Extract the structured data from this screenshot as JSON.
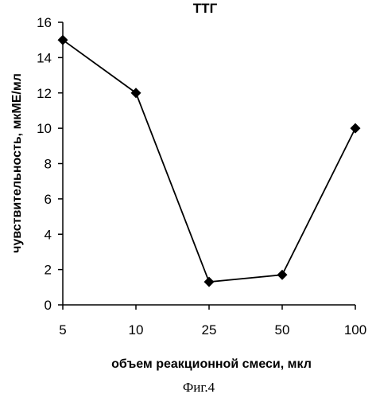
{
  "chart_data": {
    "type": "line",
    "title": "ТТГ",
    "xlabel": "объем реакционной смеси, мкл",
    "ylabel": "чувствительность, мкМЕ/мл",
    "categories": [
      "5",
      "10",
      "25",
      "50",
      "100"
    ],
    "series": [
      {
        "values": [
          15,
          12,
          1.3,
          1.7,
          10
        ]
      }
    ],
    "ylim": [
      0,
      16
    ],
    "yticks": [
      0,
      2,
      4,
      6,
      8,
      10,
      12,
      14,
      16
    ],
    "grid": false,
    "marker": "diamond",
    "line_color": "#000000"
  },
  "caption": "Фиг.4"
}
